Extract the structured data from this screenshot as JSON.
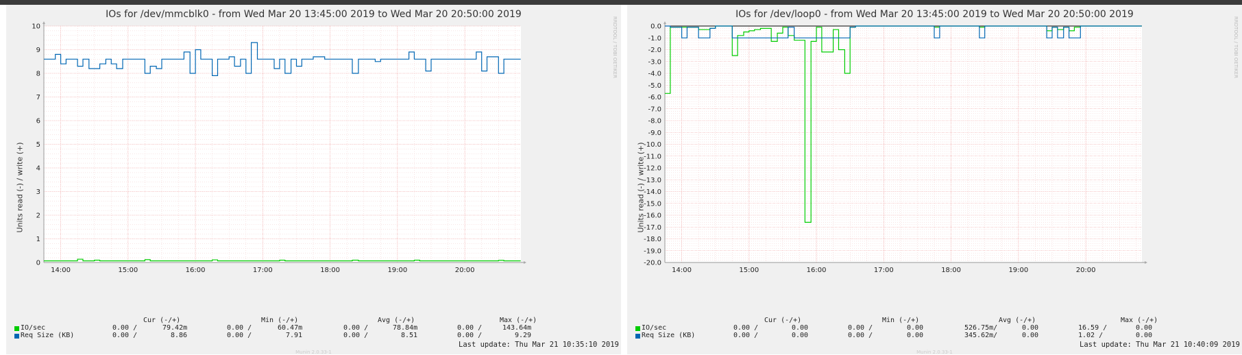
{
  "graphs": [
    {
      "title": "IOs for /dev/mmcblk0 - from Wed Mar 20 13:45:00 2019 to Wed Mar 20 20:50:00 2019",
      "ylabel": "Units read (-) / write (+)",
      "watermark": "RRDTOOL / TOBI OETIKER",
      "legend_headers": [
        "Cur (-/+)",
        "Min (-/+)",
        "Avg (-/+)",
        "Max (-/+)"
      ],
      "legend_rows": [
        {
          "name": "IO/sec",
          "color": "#00cc00",
          "values": [
            "0.00 /",
            "79.42m",
            "0.00 /",
            "60.47m",
            "0.00 /",
            "78.84m",
            "0.00 /",
            "143.64m"
          ]
        },
        {
          "name": "Req Size (KB)",
          "color": "#0066b3",
          "values": [
            "0.00 /",
            "8.86",
            "0.00 /",
            "7.91",
            "0.00 /",
            "8.51",
            "0.00 /",
            "9.29"
          ]
        }
      ],
      "last_update": "Last update: Thu Mar 21 10:35:10 2019",
      "munin": "Munin 2.0.33-1"
    },
    {
      "title": "IOs for /dev/loop0 - from Wed Mar 20 13:45:00 2019 to Wed Mar 20 20:50:00 2019",
      "ylabel": "Units read (-) / write (+)",
      "watermark": "RRDTOOL / TOBI OETIKER",
      "legend_headers": [
        "Cur (-/+)",
        "Min (-/+)",
        "Avg (-/+)",
        "Max (-/+)"
      ],
      "legend_rows": [
        {
          "name": "IO/sec",
          "color": "#00cc00",
          "values": [
            "0.00 /",
            "0.00",
            "0.00 /",
            "0.00",
            "526.75m/",
            "0.00",
            "16.59 /",
            "0.00"
          ]
        },
        {
          "name": "Req Size (KB)",
          "color": "#0066b3",
          "values": [
            "0.00 /",
            "0.00",
            "0.00 /",
            "0.00",
            "345.62m/",
            "0.00",
            "1.02 /",
            "0.00"
          ]
        }
      ],
      "last_update": "Last update: Thu Mar 21 10:40:09 2019",
      "munin": "Munin 2.0.33-1"
    }
  ],
  "chart_data": [
    {
      "type": "line",
      "title": "IOs for /dev/mmcblk0 - from Wed Mar 20 13:45:00 2019 to Wed Mar 20 20:50:00 2019",
      "xlabel": "",
      "ylabel": "Units read (-) / write (+)",
      "x_unit": "hours of Wed Mar 20 2019",
      "xlim": [
        13.75,
        20.8333
      ],
      "ylim": [
        0,
        10
      ],
      "x_ticks": [
        14,
        15,
        16,
        17,
        18,
        19,
        20
      ],
      "x_tick_labels": [
        "14:00",
        "15:00",
        "16:00",
        "17:00",
        "18:00",
        "19:00",
        "20:00"
      ],
      "y_ticks": [
        0,
        1,
        2,
        3,
        4,
        5,
        6,
        7,
        8,
        9,
        10
      ],
      "y_tick_labels": [
        "0",
        "1",
        "2",
        "3",
        "4",
        "5",
        "6",
        "7",
        "8",
        "9",
        "10"
      ],
      "grid": true,
      "series": [
        {
          "name": "Req Size (KB)",
          "color": "#0066b3",
          "step": true,
          "points": [
            [
              13.75,
              8.6
            ],
            [
              13.92,
              8.8
            ],
            [
              14.0,
              8.4
            ],
            [
              14.08,
              8.6
            ],
            [
              14.25,
              8.3
            ],
            [
              14.33,
              8.6
            ],
            [
              14.42,
              8.2
            ],
            [
              14.58,
              8.4
            ],
            [
              14.67,
              8.6
            ],
            [
              14.75,
              8.4
            ],
            [
              14.83,
              8.2
            ],
            [
              14.92,
              8.6
            ],
            [
              15.25,
              8.0
            ],
            [
              15.33,
              8.3
            ],
            [
              15.42,
              8.2
            ],
            [
              15.5,
              8.6
            ],
            [
              15.83,
              8.9
            ],
            [
              15.92,
              8.0
            ],
            [
              16.0,
              9.0
            ],
            [
              16.08,
              8.6
            ],
            [
              16.25,
              7.9
            ],
            [
              16.33,
              8.6
            ],
            [
              16.5,
              8.7
            ],
            [
              16.58,
              8.3
            ],
            [
              16.67,
              8.6
            ],
            [
              16.75,
              8.0
            ],
            [
              16.83,
              9.3
            ],
            [
              16.92,
              8.6
            ],
            [
              17.08,
              8.6
            ],
            [
              17.17,
              8.2
            ],
            [
              17.25,
              8.6
            ],
            [
              17.33,
              8.0
            ],
            [
              17.42,
              8.6
            ],
            [
              17.5,
              8.3
            ],
            [
              17.58,
              8.6
            ],
            [
              17.75,
              8.7
            ],
            [
              17.92,
              8.6
            ],
            [
              18.25,
              8.6
            ],
            [
              18.33,
              8.0
            ],
            [
              18.42,
              8.6
            ],
            [
              18.58,
              8.6
            ],
            [
              18.67,
              8.5
            ],
            [
              18.75,
              8.6
            ],
            [
              19.17,
              8.9
            ],
            [
              19.25,
              8.6
            ],
            [
              19.42,
              8.1
            ],
            [
              19.5,
              8.6
            ],
            [
              20.0,
              8.6
            ],
            [
              20.17,
              8.9
            ],
            [
              20.25,
              8.1
            ],
            [
              20.33,
              8.7
            ],
            [
              20.5,
              8.0
            ],
            [
              20.58,
              8.6
            ],
            [
              20.75,
              8.6
            ],
            [
              20.83,
              8.6
            ]
          ]
        },
        {
          "name": "IO/sec",
          "color": "#00cc00",
          "step": true,
          "points": [
            [
              13.75,
              0.07
            ],
            [
              14.25,
              0.14
            ],
            [
              14.33,
              0.07
            ],
            [
              14.5,
              0.1
            ],
            [
              14.58,
              0.07
            ],
            [
              15.25,
              0.12
            ],
            [
              15.33,
              0.07
            ],
            [
              16.25,
              0.11
            ],
            [
              16.33,
              0.07
            ],
            [
              17.25,
              0.1
            ],
            [
              17.33,
              0.07
            ],
            [
              18.33,
              0.1
            ],
            [
              18.42,
              0.07
            ],
            [
              19.25,
              0.1
            ],
            [
              19.33,
              0.07
            ],
            [
              20.5,
              0.09
            ],
            [
              20.58,
              0.07
            ],
            [
              20.83,
              0.07
            ]
          ]
        }
      ]
    },
    {
      "type": "line",
      "title": "IOs for /dev/loop0 - from Wed Mar 20 13:45:00 2019 to Wed Mar 20 20:50:00 2019",
      "xlabel": "",
      "ylabel": "Units read (-) / write (+)",
      "x_unit": "hours of Wed Mar 20 2019",
      "xlim": [
        13.75,
        20.8333
      ],
      "ylim": [
        -20,
        0
      ],
      "x_ticks": [
        14,
        15,
        16,
        17,
        18,
        19,
        20
      ],
      "x_tick_labels": [
        "14:00",
        "15:00",
        "16:00",
        "17:00",
        "18:00",
        "19:00",
        "20:00"
      ],
      "y_ticks": [
        0,
        -1,
        -2,
        -3,
        -4,
        -5,
        -6,
        -7,
        -8,
        -9,
        -10,
        -11,
        -12,
        -13,
        -14,
        -15,
        -16,
        -17,
        -18,
        -19,
        -20
      ],
      "y_tick_labels": [
        "0.0",
        "-1.0",
        "-2.0",
        "-3.0",
        "-4.0",
        "-5.0",
        "-6.0",
        "-7.0",
        "-8.0",
        "-9.0",
        "-10.0",
        "-11.0",
        "-12.0",
        "-13.0",
        "-14.0",
        "-15.0",
        "-16.0",
        "-17.0",
        "-18.0",
        "-19.0",
        "-20.0"
      ],
      "grid": true,
      "series": [
        {
          "name": "IO/sec",
          "color": "#00cc00",
          "step": true,
          "points": [
            [
              13.75,
              -5.7
            ],
            [
              13.83,
              -0.1
            ],
            [
              14.25,
              -0.3
            ],
            [
              14.42,
              -0.2
            ],
            [
              14.5,
              0.0
            ],
            [
              14.75,
              -2.5
            ],
            [
              14.83,
              -0.8
            ],
            [
              14.92,
              -0.5
            ],
            [
              15.0,
              -0.4
            ],
            [
              15.08,
              -0.3
            ],
            [
              15.17,
              -0.2
            ],
            [
              15.33,
              -1.3
            ],
            [
              15.42,
              -0.6
            ],
            [
              15.5,
              -0.1
            ],
            [
              15.58,
              -0.8
            ],
            [
              15.67,
              -1.2
            ],
            [
              15.83,
              -16.6
            ],
            [
              15.92,
              -1.3
            ],
            [
              16.0,
              -0.1
            ],
            [
              16.08,
              -2.2
            ],
            [
              16.17,
              -2.2
            ],
            [
              16.25,
              -0.3
            ],
            [
              16.33,
              -2.0
            ],
            [
              16.42,
              -4.0
            ],
            [
              16.5,
              -0.1
            ],
            [
              16.58,
              0.0
            ],
            [
              17.75,
              -0.1
            ],
            [
              17.83,
              0.0
            ],
            [
              18.42,
              -0.1
            ],
            [
              18.5,
              0.0
            ],
            [
              19.42,
              -0.4
            ],
            [
              19.5,
              -0.1
            ],
            [
              19.58,
              -0.3
            ],
            [
              19.67,
              -0.1
            ],
            [
              19.75,
              -0.4
            ],
            [
              19.83,
              -0.1
            ],
            [
              19.92,
              0.0
            ],
            [
              20.83,
              0.0
            ]
          ]
        },
        {
          "name": "Req Size (KB)",
          "color": "#0066b3",
          "step": true,
          "points": [
            [
              13.75,
              0.0
            ],
            [
              13.83,
              -0.1
            ],
            [
              14.0,
              -1.0
            ],
            [
              14.08,
              -0.1
            ],
            [
              14.25,
              -1.0
            ],
            [
              14.42,
              -0.2
            ],
            [
              14.5,
              0.0
            ],
            [
              14.75,
              -1.0
            ],
            [
              15.5,
              -1.0
            ],
            [
              15.58,
              -0.1
            ],
            [
              15.67,
              -1.0
            ],
            [
              16.25,
              -1.0
            ],
            [
              16.33,
              -1.0
            ],
            [
              16.5,
              -0.1
            ],
            [
              16.58,
              0.0
            ],
            [
              17.75,
              -1.0
            ],
            [
              17.83,
              0.0
            ],
            [
              18.42,
              -1.0
            ],
            [
              18.5,
              0.0
            ],
            [
              19.42,
              -1.0
            ],
            [
              19.5,
              -0.1
            ],
            [
              19.58,
              -1.0
            ],
            [
              19.67,
              -0.1
            ],
            [
              19.75,
              -1.0
            ],
            [
              19.92,
              0.0
            ],
            [
              20.83,
              0.0
            ]
          ]
        }
      ]
    }
  ]
}
